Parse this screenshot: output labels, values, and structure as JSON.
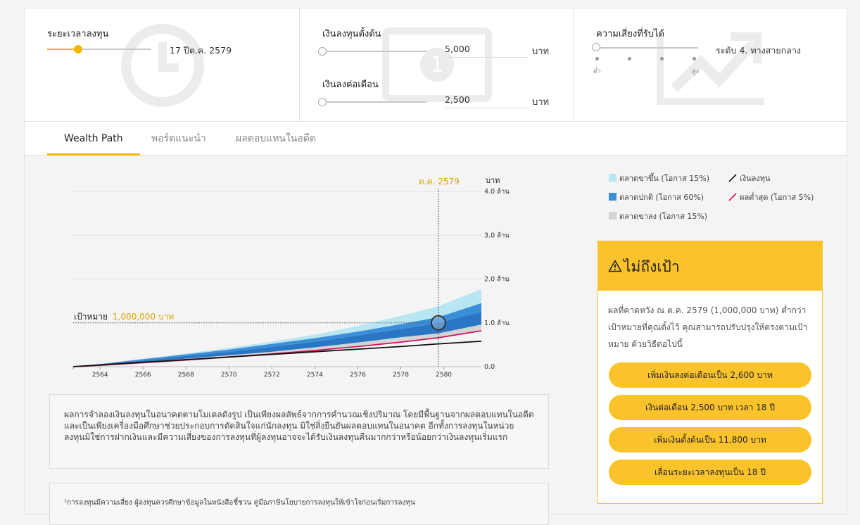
{
  "controls": {
    "duration": {
      "label": "ระยะเวลาลงทุน",
      "value": "17 ปีต.ค. 2579",
      "slider_fraction": 0.3,
      "icon": "clock-icon"
    },
    "initial": {
      "label": "เงินลงทุนตั้งต้น",
      "value": "5,000",
      "unit": "บาท",
      "icon": "money-icon"
    },
    "monthly": {
      "label": "เงินลงต่อเดือน",
      "value": "2,500",
      "unit": "บาท"
    },
    "risk": {
      "label": "ความเสี่ยงที่รับได้",
      "value": "ระดับ 4. ทางสายกลาง",
      "low_label": "ต่ำ",
      "high_label": "สูง",
      "icon": "trend-up-icon"
    }
  },
  "tabs": [
    {
      "label": "Wealth Path",
      "active": true
    },
    {
      "label": "พอร์ตแนะนำ",
      "active": false
    },
    {
      "label": "ผลตอบแทนในอดีต",
      "active": false
    }
  ],
  "chart_data": {
    "type": "area",
    "unit_label": "บาท",
    "marker_label": "ต.ค. 2579",
    "marker_x": 2579.75,
    "target_label": "เป้าหมาย",
    "target_value_label": "1,000,000 บาท",
    "target_value": 1.0,
    "x_ticks": [
      "2564",
      "2566",
      "2568",
      "2570",
      "2572",
      "2574",
      "2576",
      "2578",
      "2580"
    ],
    "y_ticks": [
      "0.0",
      "1.0 ล้าน",
      "2.0 ล้าน",
      "3.0 ล้าน",
      "4.0 ล้าน"
    ],
    "xlim": [
      2562.75,
      2581.75
    ],
    "ylim": [
      0,
      4
    ],
    "x": [
      2562.75,
      2564,
      2566,
      2568,
      2570,
      2572,
      2574,
      2576,
      2578,
      2579.75,
      2581.75
    ],
    "series": [
      {
        "name": "ตลาดขาขึ้น (โอกาส 15%)",
        "color": "#b8e6f2",
        "values": [
          0.0,
          0.06,
          0.18,
          0.3,
          0.43,
          0.57,
          0.73,
          0.93,
          1.16,
          1.38,
          1.77
        ]
      },
      {
        "name": "ตลาดปกติ (โอกาส 60%)",
        "color": "#3b8fd9",
        "values": [
          0.0,
          0.06,
          0.17,
          0.28,
          0.39,
          0.52,
          0.65,
          0.8,
          0.97,
          1.13,
          1.45
        ]
      },
      {
        "name": "ตลาดขาลง (โอกาส 15%)",
        "color": "#d4d4d4",
        "values": [
          0.0,
          0.04,
          0.11,
          0.18,
          0.26,
          0.34,
          0.44,
          0.55,
          0.67,
          0.76,
          0.96
        ]
      },
      {
        "name": "ผลต่ำสุด (โอกาส 5%)",
        "color": "#d4145a",
        "values": [
          0.0,
          0.03,
          0.09,
          0.15,
          0.22,
          0.29,
          0.37,
          0.46,
          0.56,
          0.66,
          0.82
        ]
      },
      {
        "name": "เงินลงทุน",
        "color": "#111111",
        "values": [
          0.0,
          0.04,
          0.1,
          0.16,
          0.22,
          0.28,
          0.34,
          0.4,
          0.46,
          0.52,
          0.58
        ]
      }
    ],
    "bands_lower": {
      "upper_band": [
        0.0,
        0.05,
        0.14,
        0.24,
        0.34,
        0.45,
        0.57,
        0.71,
        0.86,
        1.0,
        1.25
      ]
    },
    "grid": true,
    "legend_position": "top-right"
  },
  "card": {
    "title": "ไม่ถึงเป้า",
    "icon": "warning-icon",
    "body": "ผลที่คาดหวัง ณ ต.ค. 2579 (1,000,000 บาท) ต่ำกว่าเป้าหมายที่คุณตั้งไว้ คุณสามารถปรับปรุงให้ตรงตามเป้าหมาย ด้วยวิธีต่อไปนี้",
    "buttons": [
      "เพิ่มเงินลงต่อเดือนเป็น 2,600 บาท",
      "เงินต่อเดือน 2,500 บาท เวลา 18 ปี",
      "เพิ่มเงินตั้งต้นเป็น 11,800 บาท",
      "เลื่อนระยะเวลาลงทุนเป็น 18 ปี"
    ]
  },
  "notes": {
    "disclaimer": "ผลการจำลองเงินลงทุนในอนาคตตามโมเดลดังรูป เป็นเพียงผลลัพธ์จากการคำนวณเชิงปริมาณ โดยมีพื้นฐานจากผลตอบแทนในอดีต และเป็นเพียงเครื่องมือศึกษาช่วยประกอบการตัดสินใจแก่นักลงทุน มิใช่สิ่งยืนยันผลตอบแทนในอนาคต อีกทั้งการลงทุนในหน่วยลงทุนมิใช่การฝากเงินและมีความเสี่ยงของการลงทุนที่ผู้ลงทุนอาจจะได้รับเงินลงทุนคืนมากกว่าหรือน้อยกว่าเงินลงทุนเริ่มแรก",
    "footnote": "¹การลงทุนมีความเสี่ยง ผู้ลงทุนควรศึกษาข้อมูลในหนังสือชี้ชวน คู่มือภาษีนโยบายการลงทุนให้เข้าใจก่อนเริ่มการลงทุน"
  },
  "colors": {
    "accent": "#f5b800",
    "card_yellow": "#fbc32b",
    "marker_label": "#e0a100"
  }
}
